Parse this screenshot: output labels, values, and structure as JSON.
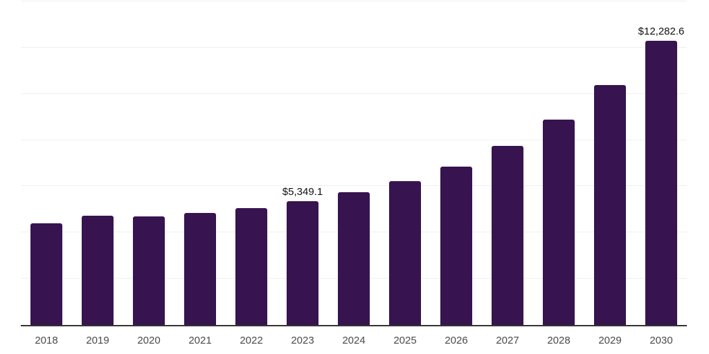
{
  "chart_data": {
    "type": "bar",
    "title": "",
    "xlabel": "",
    "ylabel": "",
    "categories": [
      "2018",
      "2019",
      "2020",
      "2021",
      "2022",
      "2023",
      "2024",
      "2025",
      "2026",
      "2027",
      "2028",
      "2029",
      "2030"
    ],
    "values": [
      4400,
      4730,
      4700,
      4850,
      5070,
      5349.1,
      5730,
      6220,
      6850,
      7750,
      8880,
      10380,
      12282.6
    ],
    "data_labels": [
      "",
      "",
      "",
      "",
      "",
      "$5,349.1",
      "",
      "",
      "",
      "",
      "",
      "",
      "$12,282.6"
    ],
    "ylim": [
      0,
      14000
    ],
    "grid_interval": 2000,
    "grid": true,
    "legend": false,
    "colors": {
      "bar": "#371350",
      "axis_line": "#333333",
      "gridline": "#efefef",
      "tick_label": "#4a4a4a",
      "data_label": "#111111"
    }
  }
}
